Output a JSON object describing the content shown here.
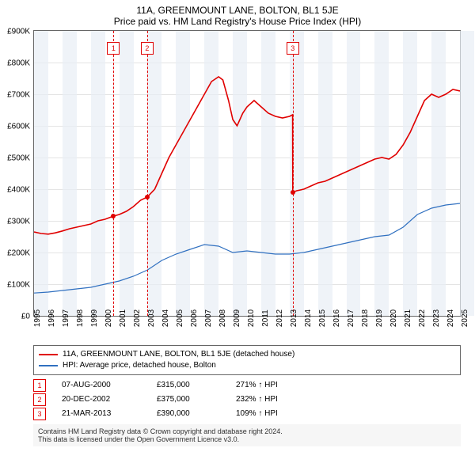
{
  "title": "11A, GREENMOUNT LANE, BOLTON, BL1 5JE",
  "subtitle": "Price paid vs. HM Land Registry's House Price Index (HPI)",
  "chart": {
    "type": "line",
    "ylim": [
      0,
      900000
    ],
    "ytick_step": 100000,
    "y_prefix": "£",
    "y_suffix": "K",
    "xlim": [
      1995,
      2025
    ],
    "xticks": [
      1995,
      1996,
      1997,
      1998,
      1999,
      2000,
      2001,
      2002,
      2003,
      2004,
      2005,
      2006,
      2007,
      2008,
      2009,
      2010,
      2011,
      2012,
      2013,
      2014,
      2015,
      2016,
      2017,
      2018,
      2019,
      2020,
      2021,
      2022,
      2023,
      2024,
      2025
    ],
    "vgrid_years": [
      1995,
      1997,
      1999,
      2001,
      2003,
      2005,
      2007,
      2009,
      2011,
      2013,
      2015,
      2017,
      2019,
      2021,
      2023,
      2025
    ],
    "grid_color": "#bbbbbb",
    "background_color": "#ffffff",
    "series": [
      {
        "id": "property",
        "label": "11A, GREENMOUNT LANE, BOLTON, BL1 5JE (detached house)",
        "color": "#e00000",
        "width": 1.6,
        "data": [
          [
            1995.0,
            265
          ],
          [
            1995.5,
            260
          ],
          [
            1996.0,
            258
          ],
          [
            1996.5,
            262
          ],
          [
            1997.0,
            268
          ],
          [
            1997.5,
            275
          ],
          [
            1998.0,
            280
          ],
          [
            1998.5,
            285
          ],
          [
            1999.0,
            290
          ],
          [
            1999.5,
            300
          ],
          [
            2000.0,
            305
          ],
          [
            2000.6,
            315
          ],
          [
            2001.0,
            320
          ],
          [
            2001.5,
            330
          ],
          [
            2002.0,
            345
          ],
          [
            2002.5,
            365
          ],
          [
            2002.97,
            375
          ],
          [
            2003.5,
            400
          ],
          [
            2004.0,
            450
          ],
          [
            2004.5,
            500
          ],
          [
            2005.0,
            540
          ],
          [
            2005.5,
            580
          ],
          [
            2006.0,
            620
          ],
          [
            2006.5,
            660
          ],
          [
            2007.0,
            700
          ],
          [
            2007.5,
            740
          ],
          [
            2008.0,
            755
          ],
          [
            2008.3,
            745
          ],
          [
            2008.7,
            680
          ],
          [
            2009.0,
            620
          ],
          [
            2009.3,
            600
          ],
          [
            2009.7,
            640
          ],
          [
            2010.0,
            660
          ],
          [
            2010.5,
            680
          ],
          [
            2011.0,
            660
          ],
          [
            2011.5,
            640
          ],
          [
            2012.0,
            630
          ],
          [
            2012.5,
            625
          ],
          [
            2013.0,
            630
          ],
          [
            2013.21,
            635
          ],
          [
            2013.22,
            390
          ],
          [
            2013.5,
            395
          ],
          [
            2014.0,
            400
          ],
          [
            2014.5,
            410
          ],
          [
            2015.0,
            420
          ],
          [
            2015.5,
            425
          ],
          [
            2016.0,
            435
          ],
          [
            2016.5,
            445
          ],
          [
            2017.0,
            455
          ],
          [
            2017.5,
            465
          ],
          [
            2018.0,
            475
          ],
          [
            2018.5,
            485
          ],
          [
            2019.0,
            495
          ],
          [
            2019.5,
            500
          ],
          [
            2020.0,
            495
          ],
          [
            2020.5,
            510
          ],
          [
            2021.0,
            540
          ],
          [
            2021.5,
            580
          ],
          [
            2022.0,
            630
          ],
          [
            2022.5,
            680
          ],
          [
            2023.0,
            700
          ],
          [
            2023.5,
            690
          ],
          [
            2024.0,
            700
          ],
          [
            2024.5,
            715
          ],
          [
            2025.0,
            710
          ]
        ]
      },
      {
        "id": "hpi",
        "label": "HPI: Average price, detached house, Bolton",
        "color": "#3070c0",
        "width": 1.2,
        "data": [
          [
            1995.0,
            72
          ],
          [
            1996.0,
            75
          ],
          [
            1997.0,
            80
          ],
          [
            1998.0,
            85
          ],
          [
            1999.0,
            90
          ],
          [
            2000.0,
            100
          ],
          [
            2001.0,
            110
          ],
          [
            2002.0,
            125
          ],
          [
            2003.0,
            145
          ],
          [
            2004.0,
            175
          ],
          [
            2005.0,
            195
          ],
          [
            2006.0,
            210
          ],
          [
            2007.0,
            225
          ],
          [
            2008.0,
            220
          ],
          [
            2009.0,
            200
          ],
          [
            2010.0,
            205
          ],
          [
            2011.0,
            200
          ],
          [
            2012.0,
            195
          ],
          [
            2013.0,
            195
          ],
          [
            2014.0,
            200
          ],
          [
            2015.0,
            210
          ],
          [
            2016.0,
            220
          ],
          [
            2017.0,
            230
          ],
          [
            2018.0,
            240
          ],
          [
            2019.0,
            250
          ],
          [
            2020.0,
            255
          ],
          [
            2021.0,
            280
          ],
          [
            2022.0,
            320
          ],
          [
            2023.0,
            340
          ],
          [
            2024.0,
            350
          ],
          [
            2025.0,
            355
          ]
        ]
      }
    ],
    "sale_annotations": [
      {
        "n": "1",
        "year": 2000.6,
        "value": 315
      },
      {
        "n": "2",
        "year": 2002.97,
        "value": 375
      },
      {
        "n": "3",
        "year": 2013.22,
        "value": 390
      }
    ]
  },
  "sales": [
    {
      "n": "1",
      "date": "07-AUG-2000",
      "price": "£315,000",
      "delta": "271% ↑ HPI"
    },
    {
      "n": "2",
      "date": "20-DEC-2002",
      "price": "£375,000",
      "delta": "232% ↑ HPI"
    },
    {
      "n": "3",
      "date": "21-MAR-2013",
      "price": "£390,000",
      "delta": "109% ↑ HPI"
    }
  ],
  "footer_line1": "Contains HM Land Registry data © Crown copyright and database right 2024.",
  "footer_line2": "This data is licensed under the Open Government Licence v3.0.",
  "colors": {
    "sale_annotation": "#e00000",
    "footer_bg": "#f6f6f6",
    "border": "#666666"
  }
}
